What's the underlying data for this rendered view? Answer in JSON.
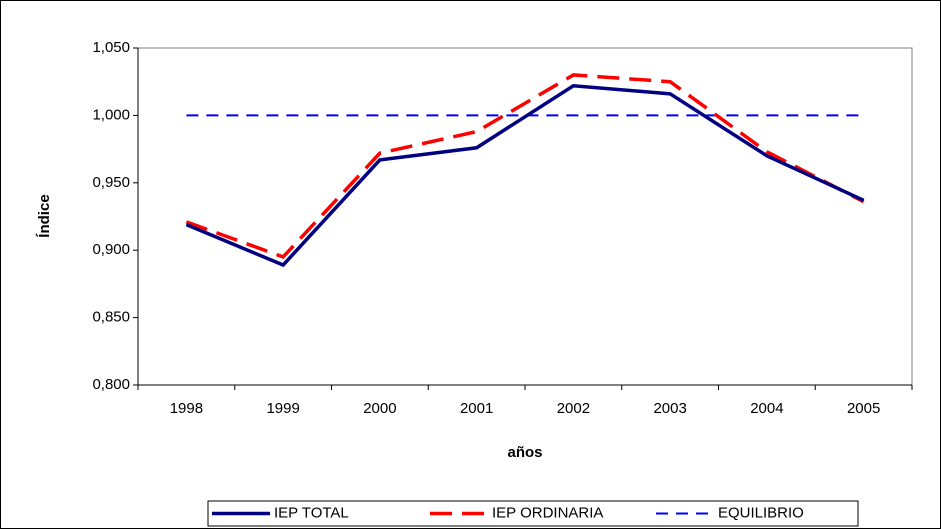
{
  "chart_data": {
    "type": "line",
    "x_label": "años",
    "y_label": "Índice",
    "categories": [
      "1998",
      "1999",
      "2000",
      "2001",
      "2002",
      "2003",
      "2004",
      "2005"
    ],
    "series": [
      {
        "name": "IEP TOTAL",
        "color": "#000080",
        "style": "solid",
        "values": [
          0.919,
          0.889,
          0.967,
          0.976,
          1.022,
          1.016,
          0.97,
          0.937
        ]
      },
      {
        "name": "IEP ORDINARIA",
        "color": "#ff0000",
        "style": "dashed",
        "values": [
          0.921,
          0.895,
          0.972,
          0.988,
          1.03,
          1.025,
          0.973,
          0.936
        ]
      },
      {
        "name": "EQUILIBRIO",
        "color": "#0000ff",
        "style": "dashed",
        "values": [
          1.0,
          1.0,
          1.0,
          1.0,
          1.0,
          1.0,
          1.0,
          1.0
        ]
      }
    ],
    "ylim": [
      0.8,
      1.05
    ],
    "yticks": [
      {
        "value": 0.8,
        "label": "0,800"
      },
      {
        "value": 0.85,
        "label": "0,850"
      },
      {
        "value": 0.9,
        "label": "0,900"
      },
      {
        "value": 0.95,
        "label": "0,950"
      },
      {
        "value": 1.0,
        "label": "1,000"
      },
      {
        "value": 1.05,
        "label": "1,050"
      }
    ],
    "grid": false,
    "legend": "bottom"
  }
}
